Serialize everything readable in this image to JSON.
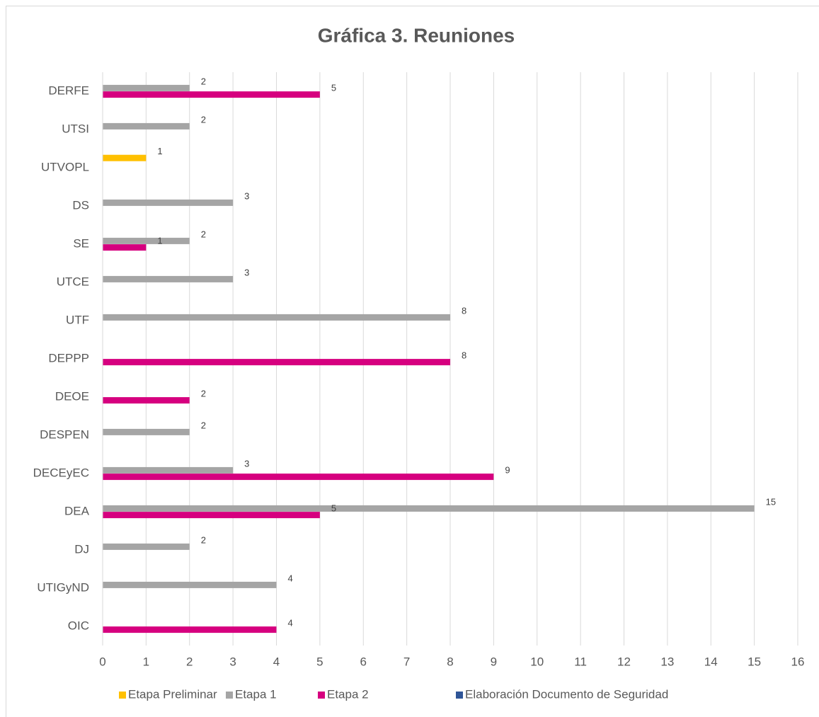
{
  "chart_data": {
    "type": "bar",
    "orientation": "horizontal",
    "title": "Gráfica 3. Reuniones",
    "categories": [
      "DERFE",
      "UTSI",
      "UTVOPL",
      "DS",
      "SE",
      "UTCE",
      "UTF",
      "DEPPP",
      "DEOE",
      "DESPEN",
      "DECEyEC",
      "DEA",
      "DJ",
      "UTIGyND",
      "OIC"
    ],
    "series": [
      {
        "name": "Etapa Preliminar",
        "color": "#ffc000",
        "values": [
          null,
          null,
          1,
          null,
          null,
          null,
          null,
          null,
          null,
          null,
          null,
          null,
          null,
          null,
          null
        ]
      },
      {
        "name": "Etapa 1",
        "color": "#a5a5a5",
        "values": [
          2,
          2,
          null,
          3,
          2,
          3,
          8,
          null,
          null,
          2,
          3,
          15,
          2,
          4,
          null
        ]
      },
      {
        "name": "Etapa 2",
        "color": "#d6007f",
        "values": [
          5,
          null,
          null,
          null,
          1,
          null,
          null,
          8,
          2,
          null,
          9,
          5,
          null,
          null,
          4
        ]
      },
      {
        "name": "Elaboración Documento de Seguridad",
        "color": "#2f5597",
        "values": [
          null,
          null,
          null,
          null,
          null,
          null,
          null,
          null,
          null,
          null,
          null,
          null,
          null,
          null,
          null
        ]
      }
    ],
    "xlim": [
      0,
      16
    ],
    "xticks": [
      0,
      1,
      2,
      3,
      4,
      5,
      6,
      7,
      8,
      9,
      10,
      11,
      12,
      13,
      14,
      15,
      16
    ],
    "grid": true,
    "legend": "bottom"
  }
}
